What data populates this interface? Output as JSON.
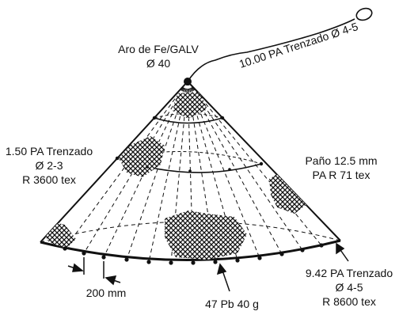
{
  "colors": {
    "ink": "#111111",
    "background": "#ffffff"
  },
  "labels": {
    "top_line_tail": "10.00 PA Trenzado Ø 4-5",
    "ring_title": "Aro de Fe/GALV",
    "ring_dia": "Ø 40",
    "left_line_1": "1.50 PA Trenzado",
    "left_line_2": "Ø 2-3",
    "left_line_3": "R 3600 tex",
    "right_pano_1": "Paño 12.5 mm",
    "right_pano_2": "PA R 71 tex",
    "bottom_right_1": "9.42 PA Trenzado",
    "bottom_right_2": "Ø 4-5",
    "bottom_right_3": "R 8600 tex",
    "spacing": "200 mm",
    "weights": "47 Pb 40 g"
  }
}
